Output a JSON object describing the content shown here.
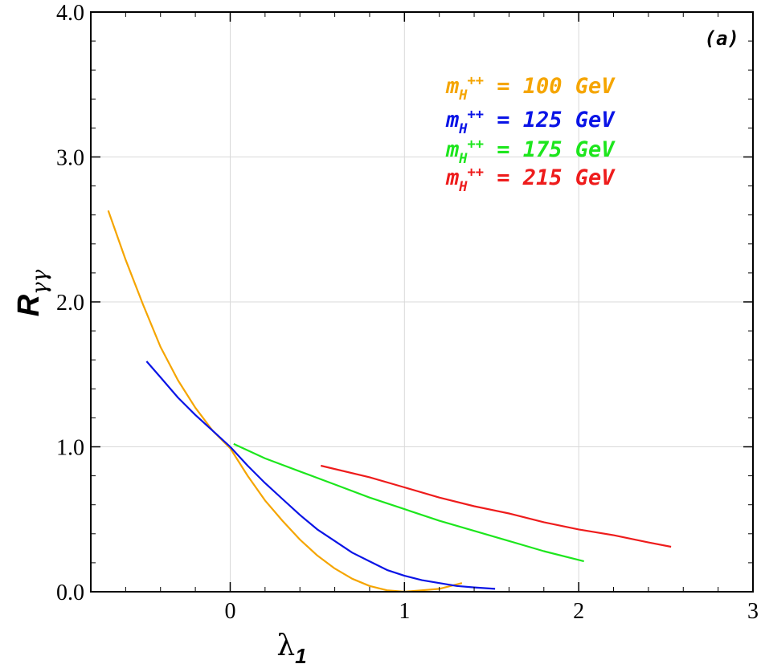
{
  "chart_data": {
    "type": "line",
    "panel_label": "(a)",
    "xlabel": "λ",
    "xlabel_sub": "1",
    "ylabel": "R",
    "ylabel_sub": "γγ",
    "xlim": [
      -0.8,
      3
    ],
    "ylim": [
      0,
      4
    ],
    "x_ticks": [
      {
        "value": 0,
        "label": "0"
      },
      {
        "value": 1,
        "label": "1"
      },
      {
        "value": 2,
        "label": "2"
      },
      {
        "value": 3,
        "label": "3"
      }
    ],
    "y_ticks": [
      {
        "value": 0,
        "label": "0.0"
      },
      {
        "value": 1,
        "label": "1.0"
      },
      {
        "value": 2,
        "label": "2.0"
      },
      {
        "value": 3,
        "label": "3.0"
      },
      {
        "value": 4,
        "label": "4.0"
      }
    ],
    "grid": true,
    "legend_position": "top-right",
    "series": [
      {
        "legend": {
          "prefix": "m",
          "sub": "H",
          "sup": "++",
          "text": " = 100 GeV"
        },
        "color": "#f5a500",
        "points": [
          [
            -0.7,
            2.63
          ],
          [
            -0.6,
            2.29
          ],
          [
            -0.5,
            1.98
          ],
          [
            -0.4,
            1.69
          ],
          [
            -0.3,
            1.46
          ],
          [
            -0.2,
            1.27
          ],
          [
            -0.1,
            1.11
          ],
          [
            0,
            0.99
          ],
          [
            0.1,
            0.8
          ],
          [
            0.2,
            0.63
          ],
          [
            0.3,
            0.49
          ],
          [
            0.4,
            0.36
          ],
          [
            0.5,
            0.25
          ],
          [
            0.6,
            0.16
          ],
          [
            0.7,
            0.09
          ],
          [
            0.8,
            0.04
          ],
          [
            0.9,
            0.01
          ],
          [
            1.0,
            0.0
          ],
          [
            1.1,
            0.01
          ],
          [
            1.2,
            0.02
          ],
          [
            1.33,
            0.06
          ]
        ]
      },
      {
        "legend": {
          "prefix": "m",
          "sub": "H",
          "sup": "++",
          "text": " = 125 GeV"
        },
        "color": "#0a14e6",
        "points": [
          [
            -0.48,
            1.59
          ],
          [
            -0.4,
            1.48
          ],
          [
            -0.3,
            1.34
          ],
          [
            -0.2,
            1.22
          ],
          [
            -0.1,
            1.11
          ],
          [
            0,
            1.0
          ],
          [
            0.1,
            0.87
          ],
          [
            0.2,
            0.75
          ],
          [
            0.3,
            0.64
          ],
          [
            0.4,
            0.53
          ],
          [
            0.5,
            0.43
          ],
          [
            0.6,
            0.35
          ],
          [
            0.7,
            0.27
          ],
          [
            0.8,
            0.21
          ],
          [
            0.9,
            0.15
          ],
          [
            1.0,
            0.11
          ],
          [
            1.1,
            0.08
          ],
          [
            1.2,
            0.06
          ],
          [
            1.3,
            0.04
          ],
          [
            1.4,
            0.03
          ],
          [
            1.52,
            0.02
          ]
        ]
      },
      {
        "legend": {
          "prefix": "m",
          "sub": "H",
          "sup": "++",
          "text": " = 175 GeV"
        },
        "color": "#1de61d",
        "points": [
          [
            0.02,
            1.02
          ],
          [
            0.2,
            0.92
          ],
          [
            0.4,
            0.83
          ],
          [
            0.6,
            0.74
          ],
          [
            0.8,
            0.65
          ],
          [
            1.0,
            0.57
          ],
          [
            1.2,
            0.49
          ],
          [
            1.4,
            0.42
          ],
          [
            1.6,
            0.35
          ],
          [
            1.8,
            0.28
          ],
          [
            2.03,
            0.21
          ]
        ]
      },
      {
        "legend": {
          "prefix": "m",
          "sub": "H",
          "sup": "++",
          "text": " = 215 GeV"
        },
        "color": "#ee1c1c",
        "points": [
          [
            0.52,
            0.87
          ],
          [
            0.8,
            0.79
          ],
          [
            1.0,
            0.72
          ],
          [
            1.2,
            0.65
          ],
          [
            1.4,
            0.59
          ],
          [
            1.6,
            0.54
          ],
          [
            1.8,
            0.48
          ],
          [
            2.0,
            0.43
          ],
          [
            2.2,
            0.39
          ],
          [
            2.4,
            0.34
          ],
          [
            2.53,
            0.31
          ]
        ]
      }
    ]
  }
}
